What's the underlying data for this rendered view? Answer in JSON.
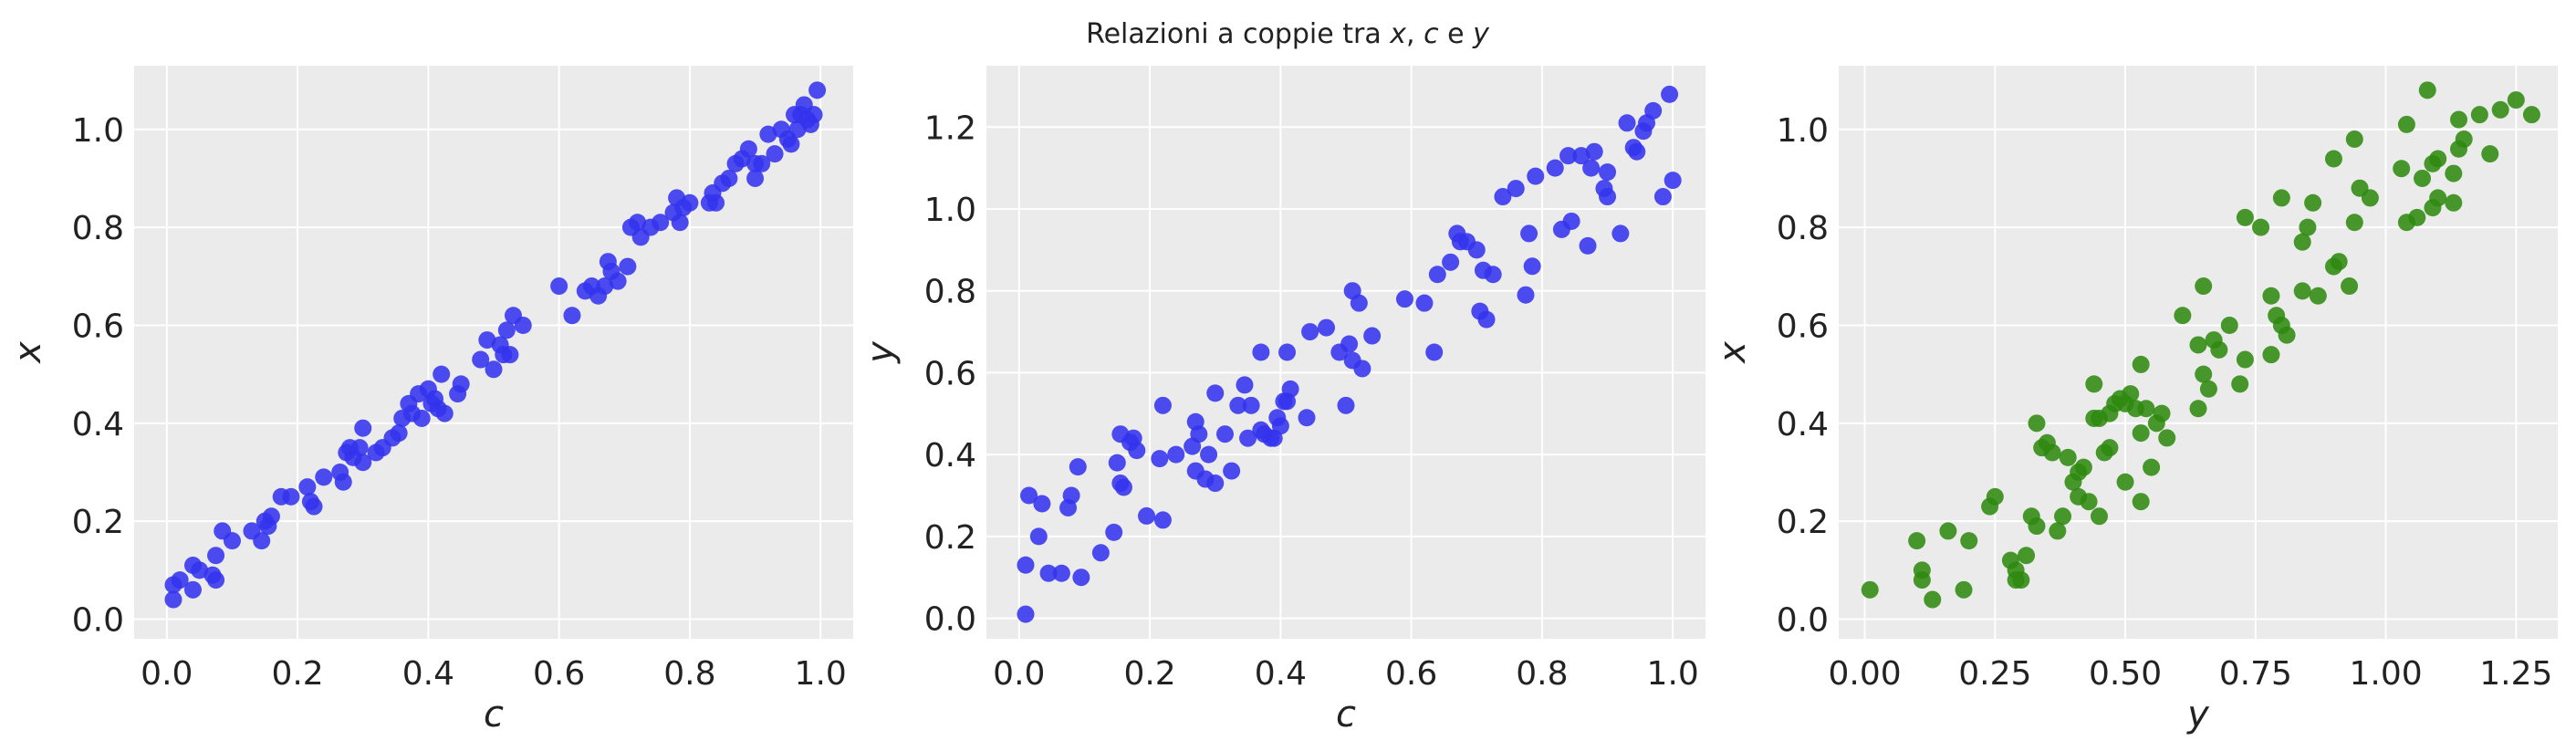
{
  "suptitle": {
    "prefix": "Relazioni a coppie tra ",
    "v1": "x",
    "sep1": ", ",
    "v2": "c",
    "sep2": " e ",
    "v3": "y"
  },
  "colors": {
    "blue": "#3333ee",
    "green": "#2f8a10",
    "panel_bg": "#ebebeb",
    "grid": "#ffffff"
  },
  "chart_data": [
    {
      "type": "scatter",
      "title": "",
      "xlabel": "c",
      "ylabel": "x",
      "xlim": [
        -0.05,
        1.05
      ],
      "ylim": [
        -0.04,
        1.13
      ],
      "xticks": [
        0.0,
        0.2,
        0.4,
        0.6,
        0.8,
        1.0
      ],
      "xtick_labels": [
        "0.0",
        "0.2",
        "0.4",
        "0.6",
        "0.8",
        "1.0"
      ],
      "yticks": [
        0.0,
        0.2,
        0.4,
        0.6,
        0.8,
        1.0
      ],
      "ytick_labels": [
        "0.0",
        "0.2",
        "0.4",
        "0.6",
        "0.8",
        "1.0"
      ],
      "grid": true,
      "color": "#3333ee",
      "points": [
        [
          0.01,
          0.04
        ],
        [
          0.01,
          0.07
        ],
        [
          0.02,
          0.08
        ],
        [
          0.04,
          0.06
        ],
        [
          0.04,
          0.11
        ],
        [
          0.05,
          0.1
        ],
        [
          0.07,
          0.09
        ],
        [
          0.075,
          0.08
        ],
        [
          0.075,
          0.13
        ],
        [
          0.085,
          0.18
        ],
        [
          0.1,
          0.16
        ],
        [
          0.13,
          0.18
        ],
        [
          0.145,
          0.16
        ],
        [
          0.15,
          0.2
        ],
        [
          0.155,
          0.19
        ],
        [
          0.16,
          0.21
        ],
        [
          0.175,
          0.25
        ],
        [
          0.19,
          0.25
        ],
        [
          0.215,
          0.27
        ],
        [
          0.22,
          0.24
        ],
        [
          0.225,
          0.23
        ],
        [
          0.24,
          0.29
        ],
        [
          0.265,
          0.3
        ],
        [
          0.27,
          0.28
        ],
        [
          0.275,
          0.34
        ],
        [
          0.28,
          0.35
        ],
        [
          0.285,
          0.33
        ],
        [
          0.295,
          0.35
        ],
        [
          0.3,
          0.32
        ],
        [
          0.3,
          0.39
        ],
        [
          0.32,
          0.34
        ],
        [
          0.33,
          0.35
        ],
        [
          0.345,
          0.37
        ],
        [
          0.355,
          0.38
        ],
        [
          0.36,
          0.41
        ],
        [
          0.37,
          0.44
        ],
        [
          0.375,
          0.42
        ],
        [
          0.385,
          0.46
        ],
        [
          0.39,
          0.41
        ],
        [
          0.4,
          0.47
        ],
        [
          0.405,
          0.44
        ],
        [
          0.41,
          0.45
        ],
        [
          0.415,
          0.43
        ],
        [
          0.42,
          0.5
        ],
        [
          0.425,
          0.42
        ],
        [
          0.445,
          0.46
        ],
        [
          0.45,
          0.48
        ],
        [
          0.48,
          0.53
        ],
        [
          0.49,
          0.57
        ],
        [
          0.5,
          0.51
        ],
        [
          0.51,
          0.56
        ],
        [
          0.515,
          0.54
        ],
        [
          0.52,
          0.59
        ],
        [
          0.525,
          0.54
        ],
        [
          0.53,
          0.62
        ],
        [
          0.545,
          0.6
        ],
        [
          0.6,
          0.68
        ],
        [
          0.62,
          0.62
        ],
        [
          0.64,
          0.67
        ],
        [
          0.65,
          0.68
        ],
        [
          0.66,
          0.66
        ],
        [
          0.67,
          0.68
        ],
        [
          0.675,
          0.73
        ],
        [
          0.68,
          0.71
        ],
        [
          0.69,
          0.69
        ],
        [
          0.705,
          0.72
        ],
        [
          0.71,
          0.8
        ],
        [
          0.72,
          0.81
        ],
        [
          0.725,
          0.78
        ],
        [
          0.74,
          0.8
        ],
        [
          0.755,
          0.81
        ],
        [
          0.775,
          0.83
        ],
        [
          0.78,
          0.86
        ],
        [
          0.785,
          0.81
        ],
        [
          0.79,
          0.84
        ],
        [
          0.8,
          0.85
        ],
        [
          0.83,
          0.85
        ],
        [
          0.835,
          0.87
        ],
        [
          0.84,
          0.85
        ],
        [
          0.85,
          0.89
        ],
        [
          0.86,
          0.9
        ],
        [
          0.87,
          0.93
        ],
        [
          0.88,
          0.94
        ],
        [
          0.89,
          0.96
        ],
        [
          0.9,
          0.93
        ],
        [
          0.9,
          0.9
        ],
        [
          0.91,
          0.93
        ],
        [
          0.92,
          0.99
        ],
        [
          0.93,
          0.95
        ],
        [
          0.94,
          1.0
        ],
        [
          0.95,
          0.98
        ],
        [
          0.955,
          0.97
        ],
        [
          0.96,
          1.03
        ],
        [
          0.97,
          1.03
        ],
        [
          0.975,
          1.05
        ],
        [
          0.98,
          1.02
        ],
        [
          0.99,
          1.03
        ],
        [
          0.995,
          1.08
        ],
        [
          0.985,
          1.01
        ],
        [
          0.965,
          1.0
        ]
      ]
    },
    {
      "type": "scatter",
      "title": "",
      "xlabel": "c",
      "ylabel": "y",
      "xlim": [
        -0.05,
        1.05
      ],
      "ylim": [
        -0.05,
        1.35
      ],
      "xticks": [
        0.0,
        0.2,
        0.4,
        0.6,
        0.8,
        1.0
      ],
      "xtick_labels": [
        "0.0",
        "0.2",
        "0.4",
        "0.6",
        "0.8",
        "1.0"
      ],
      "yticks": [
        0.0,
        0.2,
        0.4,
        0.6,
        0.8,
        1.0,
        1.2
      ],
      "ytick_labels": [
        "0.0",
        "0.2",
        "0.4",
        "0.6",
        "0.8",
        "1.0",
        "1.2"
      ],
      "grid": true,
      "color": "#3333ee",
      "points": [
        [
          0.01,
          0.01
        ],
        [
          0.01,
          0.13
        ],
        [
          0.015,
          0.3
        ],
        [
          0.03,
          0.2
        ],
        [
          0.035,
          0.28
        ],
        [
          0.045,
          0.11
        ],
        [
          0.065,
          0.11
        ],
        [
          0.075,
          0.27
        ],
        [
          0.08,
          0.3
        ],
        [
          0.09,
          0.37
        ],
        [
          0.095,
          0.1
        ],
        [
          0.125,
          0.16
        ],
        [
          0.145,
          0.21
        ],
        [
          0.15,
          0.38
        ],
        [
          0.155,
          0.45
        ],
        [
          0.155,
          0.33
        ],
        [
          0.16,
          0.32
        ],
        [
          0.17,
          0.43
        ],
        [
          0.175,
          0.44
        ],
        [
          0.18,
          0.41
        ],
        [
          0.195,
          0.25
        ],
        [
          0.215,
          0.39
        ],
        [
          0.22,
          0.52
        ],
        [
          0.22,
          0.24
        ],
        [
          0.24,
          0.4
        ],
        [
          0.265,
          0.42
        ],
        [
          0.27,
          0.48
        ],
        [
          0.27,
          0.36
        ],
        [
          0.275,
          0.45
        ],
        [
          0.285,
          0.34
        ],
        [
          0.29,
          0.4
        ],
        [
          0.3,
          0.33
        ],
        [
          0.3,
          0.55
        ],
        [
          0.315,
          0.45
        ],
        [
          0.325,
          0.36
        ],
        [
          0.335,
          0.52
        ],
        [
          0.345,
          0.57
        ],
        [
          0.35,
          0.44
        ],
        [
          0.355,
          0.52
        ],
        [
          0.37,
          0.46
        ],
        [
          0.37,
          0.65
        ],
        [
          0.375,
          0.45
        ],
        [
          0.385,
          0.44
        ],
        [
          0.39,
          0.44
        ],
        [
          0.395,
          0.49
        ],
        [
          0.4,
          0.47
        ],
        [
          0.405,
          0.53
        ],
        [
          0.41,
          0.65
        ],
        [
          0.41,
          0.53
        ],
        [
          0.415,
          0.56
        ],
        [
          0.44,
          0.49
        ],
        [
          0.445,
          0.7
        ],
        [
          0.47,
          0.71
        ],
        [
          0.49,
          0.65
        ],
        [
          0.5,
          0.52
        ],
        [
          0.505,
          0.67
        ],
        [
          0.51,
          0.63
        ],
        [
          0.51,
          0.8
        ],
        [
          0.52,
          0.77
        ],
        [
          0.525,
          0.61
        ],
        [
          0.54,
          0.69
        ],
        [
          0.59,
          0.78
        ],
        [
          0.62,
          0.77
        ],
        [
          0.635,
          0.65
        ],
        [
          0.64,
          0.84
        ],
        [
          0.66,
          0.87
        ],
        [
          0.67,
          0.94
        ],
        [
          0.675,
          0.92
        ],
        [
          0.685,
          0.92
        ],
        [
          0.7,
          0.9
        ],
        [
          0.705,
          0.75
        ],
        [
          0.71,
          0.85
        ],
        [
          0.715,
          0.73
        ],
        [
          0.725,
          0.84
        ],
        [
          0.74,
          1.03
        ],
        [
          0.76,
          1.05
        ],
        [
          0.775,
          0.79
        ],
        [
          0.78,
          0.94
        ],
        [
          0.785,
          0.86
        ],
        [
          0.79,
          1.08
        ],
        [
          0.82,
          1.1
        ],
        [
          0.83,
          0.95
        ],
        [
          0.84,
          1.13
        ],
        [
          0.845,
          0.97
        ],
        [
          0.86,
          1.13
        ],
        [
          0.87,
          0.91
        ],
        [
          0.875,
          1.1
        ],
        [
          0.88,
          1.14
        ],
        [
          0.895,
          1.05
        ],
        [
          0.9,
          1.03
        ],
        [
          0.9,
          1.09
        ],
        [
          0.92,
          0.94
        ],
        [
          0.93,
          1.21
        ],
        [
          0.94,
          1.15
        ],
        [
          0.945,
          1.14
        ],
        [
          0.955,
          1.19
        ],
        [
          0.96,
          1.21
        ],
        [
          0.97,
          1.24
        ],
        [
          0.985,
          1.03
        ],
        [
          0.995,
          1.28
        ],
        [
          1.0,
          1.07
        ]
      ]
    },
    {
      "type": "scatter",
      "title": "",
      "xlabel": "y",
      "ylabel": "x",
      "xlim": [
        -0.05,
        1.33
      ],
      "ylim": [
        -0.04,
        1.13
      ],
      "xticks": [
        0.0,
        0.25,
        0.5,
        0.75,
        1.0,
        1.25
      ],
      "xtick_labels": [
        "0.00",
        "0.25",
        "0.50",
        "0.75",
        "1.00",
        "1.25"
      ],
      "yticks": [
        0.0,
        0.2,
        0.4,
        0.6,
        0.8,
        1.0
      ],
      "ytick_labels": [
        "0.0",
        "0.2",
        "0.4",
        "0.6",
        "0.8",
        "1.0"
      ],
      "grid": true,
      "color": "#2f8a10",
      "points": [
        [
          0.01,
          0.06
        ],
        [
          0.1,
          0.16
        ],
        [
          0.11,
          0.1
        ],
        [
          0.11,
          0.08
        ],
        [
          0.13,
          0.04
        ],
        [
          0.16,
          0.18
        ],
        [
          0.19,
          0.06
        ],
        [
          0.2,
          0.16
        ],
        [
          0.24,
          0.23
        ],
        [
          0.25,
          0.25
        ],
        [
          0.28,
          0.12
        ],
        [
          0.29,
          0.08
        ],
        [
          0.29,
          0.1
        ],
        [
          0.3,
          0.08
        ],
        [
          0.31,
          0.13
        ],
        [
          0.32,
          0.21
        ],
        [
          0.33,
          0.19
        ],
        [
          0.33,
          0.4
        ],
        [
          0.34,
          0.35
        ],
        [
          0.35,
          0.36
        ],
        [
          0.36,
          0.34
        ],
        [
          0.37,
          0.18
        ],
        [
          0.38,
          0.21
        ],
        [
          0.39,
          0.33
        ],
        [
          0.4,
          0.28
        ],
        [
          0.41,
          0.25
        ],
        [
          0.41,
          0.3
        ],
        [
          0.42,
          0.31
        ],
        [
          0.43,
          0.24
        ],
        [
          0.44,
          0.41
        ],
        [
          0.44,
          0.48
        ],
        [
          0.45,
          0.21
        ],
        [
          0.45,
          0.41
        ],
        [
          0.46,
          0.34
        ],
        [
          0.47,
          0.35
        ],
        [
          0.47,
          0.42
        ],
        [
          0.48,
          0.44
        ],
        [
          0.49,
          0.45
        ],
        [
          0.5,
          0.28
        ],
        [
          0.5,
          0.44
        ],
        [
          0.51,
          0.46
        ],
        [
          0.52,
          0.43
        ],
        [
          0.53,
          0.52
        ],
        [
          0.53,
          0.38
        ],
        [
          0.53,
          0.24
        ],
        [
          0.54,
          0.43
        ],
        [
          0.55,
          0.31
        ],
        [
          0.56,
          0.4
        ],
        [
          0.57,
          0.42
        ],
        [
          0.58,
          0.37
        ],
        [
          0.61,
          0.62
        ],
        [
          0.64,
          0.43
        ],
        [
          0.64,
          0.56
        ],
        [
          0.65,
          0.68
        ],
        [
          0.65,
          0.5
        ],
        [
          0.66,
          0.47
        ],
        [
          0.67,
          0.57
        ],
        [
          0.68,
          0.55
        ],
        [
          0.7,
          0.6
        ],
        [
          0.72,
          0.48
        ],
        [
          0.73,
          0.53
        ],
        [
          0.73,
          0.82
        ],
        [
          0.76,
          0.8
        ],
        [
          0.78,
          0.66
        ],
        [
          0.78,
          0.54
        ],
        [
          0.79,
          0.62
        ],
        [
          0.8,
          0.6
        ],
        [
          0.8,
          0.86
        ],
        [
          0.81,
          0.58
        ],
        [
          0.84,
          0.67
        ],
        [
          0.84,
          0.77
        ],
        [
          0.85,
          0.8
        ],
        [
          0.86,
          0.85
        ],
        [
          0.87,
          0.66
        ],
        [
          0.9,
          0.94
        ],
        [
          0.9,
          0.72
        ],
        [
          0.91,
          0.73
        ],
        [
          0.93,
          0.68
        ],
        [
          0.94,
          0.98
        ],
        [
          0.94,
          0.81
        ],
        [
          0.95,
          0.88
        ],
        [
          0.97,
          0.86
        ],
        [
          1.03,
          0.92
        ],
        [
          1.04,
          1.01
        ],
        [
          1.04,
          0.81
        ],
        [
          1.06,
          0.82
        ],
        [
          1.07,
          0.9
        ],
        [
          1.08,
          1.08
        ],
        [
          1.09,
          0.84
        ],
        [
          1.09,
          0.93
        ],
        [
          1.1,
          0.94
        ],
        [
          1.1,
          0.86
        ],
        [
          1.13,
          0.85
        ],
        [
          1.13,
          0.91
        ],
        [
          1.14,
          0.96
        ],
        [
          1.14,
          1.02
        ],
        [
          1.15,
          0.98
        ],
        [
          1.18,
          1.03
        ],
        [
          1.2,
          0.95
        ],
        [
          1.22,
          1.04
        ],
        [
          1.25,
          1.06
        ],
        [
          1.28,
          1.03
        ]
      ]
    }
  ]
}
